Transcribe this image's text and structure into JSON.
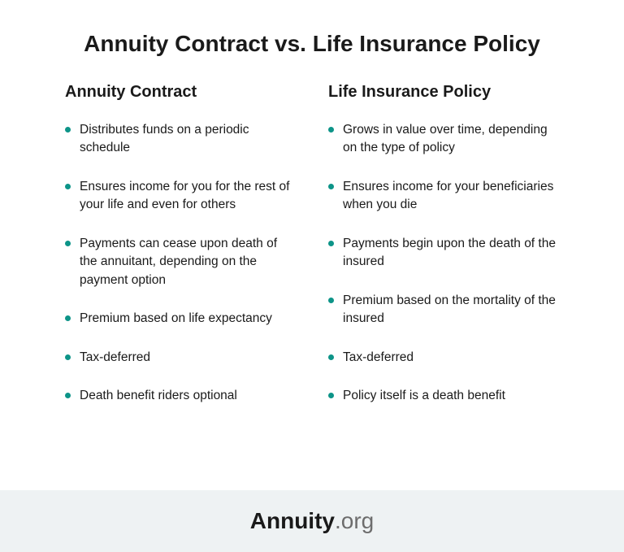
{
  "title": "Annuity Contract vs. Life Insurance Policy",
  "bullet_color": "#0d9488",
  "footer_bg": "#eef2f3",
  "text_color": "#1a1a1a",
  "columns": {
    "left": {
      "heading": "Annuity Contract",
      "items": [
        "Distributes funds on a periodic schedule",
        "Ensures income for you for the rest of your life and even for others",
        "Payments can cease upon death of the annuitant, depending on the payment option",
        "Premium based on life expectancy",
        "Tax-deferred",
        "Death benefit riders optional"
      ]
    },
    "right": {
      "heading": "Life Insurance Policy",
      "items": [
        "Grows in value over time, depending on the type of policy",
        "Ensures income for your beneficiaries when you die",
        "Payments begin upon the death of the insured",
        "Premium based on the mortality of the insured",
        "Tax-deferred",
        "Policy itself is a death benefit"
      ]
    }
  },
  "footer": {
    "brand_bold": "Annuity",
    "brand_light": ".org"
  }
}
